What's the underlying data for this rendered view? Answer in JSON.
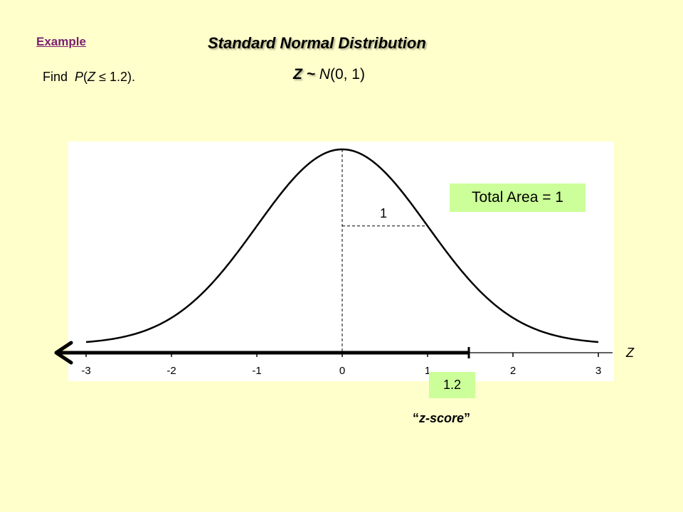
{
  "header": {
    "example_label": "Example",
    "title": "Standard Normal Distribution"
  },
  "problem": {
    "find_label": "Find",
    "prob_func": "P",
    "open_paren": "(",
    "variable": "Z",
    "relation": "≤",
    "value": "1.2",
    "close_paren": ")."
  },
  "distribution": {
    "variable": "Z",
    "tilde": "~",
    "symbol": "N",
    "params": "(0, 1)"
  },
  "chart_data": {
    "type": "line",
    "distribution": "standard normal",
    "mean": 0,
    "sd": 1,
    "xlim": [
      -3,
      3
    ],
    "x_ticks": [
      -3,
      -2,
      -1,
      0,
      1,
      2,
      3
    ],
    "x_tick_labels": [
      "-3",
      "-2",
      "-1",
      "0",
      "1",
      "2",
      "3"
    ],
    "xlabel": "Z",
    "sd_marker_label": "1",
    "total_area_label": "Total Area = 1",
    "shaded_region": {
      "from": -3,
      "to": 1.2,
      "direction": "left"
    },
    "z_value_label": "1.2",
    "z_score_caption_quote_open": "“",
    "z_score_caption": "z-score",
    "z_score_caption_quote_close": "”",
    "grid": false,
    "colors": {
      "curve": "#000000",
      "background": "#ffffcc",
      "plot_background": "#ffffff",
      "label_box": "#ccff99",
      "arrow": "#000000"
    }
  }
}
